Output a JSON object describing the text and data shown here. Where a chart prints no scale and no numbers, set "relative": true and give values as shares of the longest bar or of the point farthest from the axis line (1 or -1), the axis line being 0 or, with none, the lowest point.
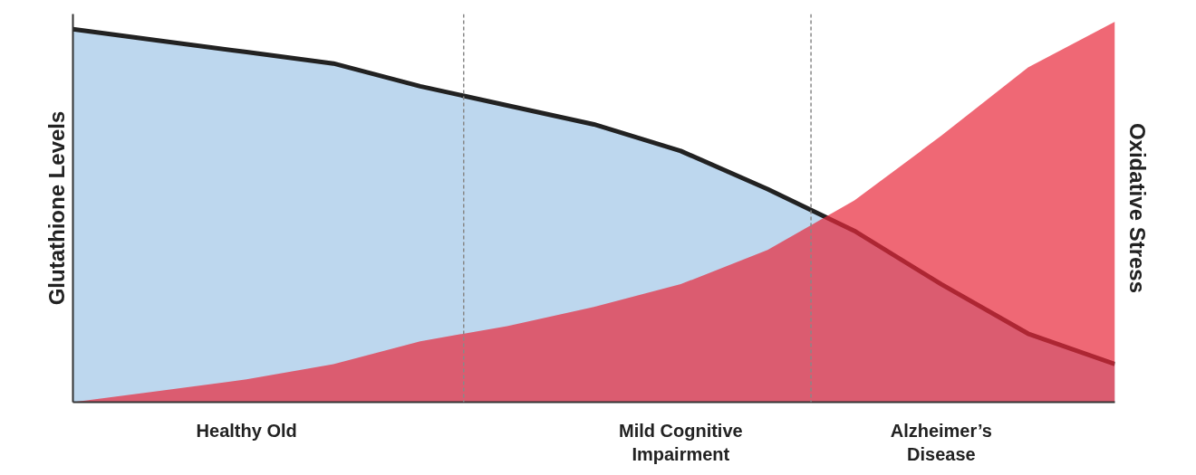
{
  "chart_data": {
    "type": "area",
    "relative": true,
    "ylabel": "Glutathione Levels",
    "y2label": "Oxidative Stress",
    "categories": [
      null,
      null,
      "Healthy Old",
      null,
      null,
      null,
      null,
      "Mild Cognitive\nImpairment",
      null,
      null,
      "Alzheimer’s\nDisease",
      null,
      null
    ],
    "series": [
      {
        "color": "#bdd7ee",
        "values": [
          0.98,
          0.95,
          0.92,
          0.89,
          0.83,
          0.78,
          0.73,
          0.66,
          0.56,
          0.45,
          0.31,
          0.18,
          0.1
        ]
      },
      {
        "color": "#e8283a",
        "values": [
          0,
          0.03,
          0.06,
          0.1,
          0.16,
          0.2,
          0.25,
          0.31,
          0.4,
          0.53,
          0.7,
          0.88,
          1.0
        ]
      }
    ],
    "tick_labels": "x"
  }
}
